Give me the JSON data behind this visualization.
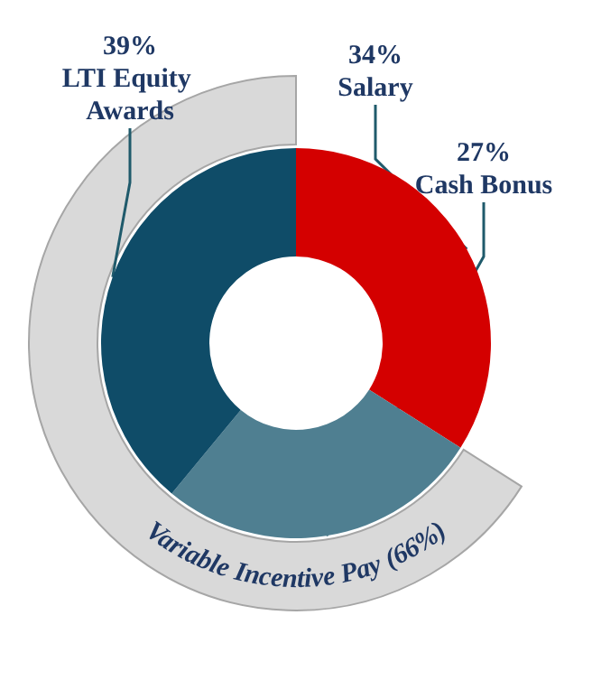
{
  "chart_data": {
    "type": "donut",
    "categories": [
      "Salary",
      "Cash Bonus",
      "LTI Equity Awards"
    ],
    "values": [
      34,
      27,
      39
    ],
    "colors": [
      "#d40000",
      "#4f7f91",
      "#0f4c68"
    ],
    "value_labels": [
      "34%",
      "27%",
      "39%"
    ],
    "annotations": [
      "Variable Incentive Pay (66%)"
    ]
  }
}
